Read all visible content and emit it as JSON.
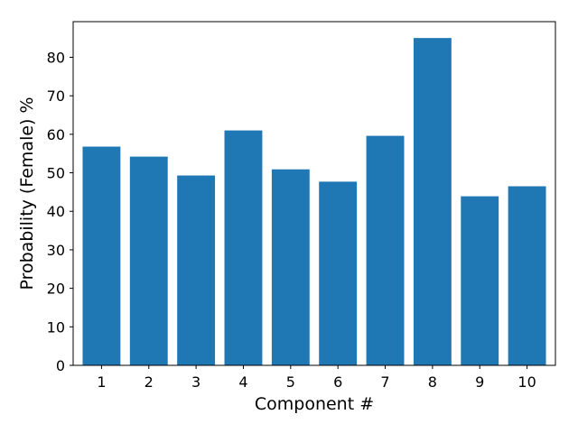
{
  "chart_data": {
    "type": "bar",
    "categories": [
      "1",
      "2",
      "3",
      "4",
      "5",
      "6",
      "7",
      "8",
      "9",
      "10"
    ],
    "values": [
      56.8,
      54.2,
      49.3,
      61.0,
      50.9,
      47.7,
      59.6,
      85.0,
      43.9,
      46.5
    ],
    "title": "",
    "xlabel": "Component #",
    "ylabel": "Probability (Female) %",
    "ylim": [
      0,
      89.25
    ],
    "yticks": [
      "0",
      "10",
      "20",
      "30",
      "40",
      "50",
      "60",
      "70",
      "80"
    ],
    "grid": false,
    "legend": "none",
    "bar_color": "#1f77b4"
  }
}
